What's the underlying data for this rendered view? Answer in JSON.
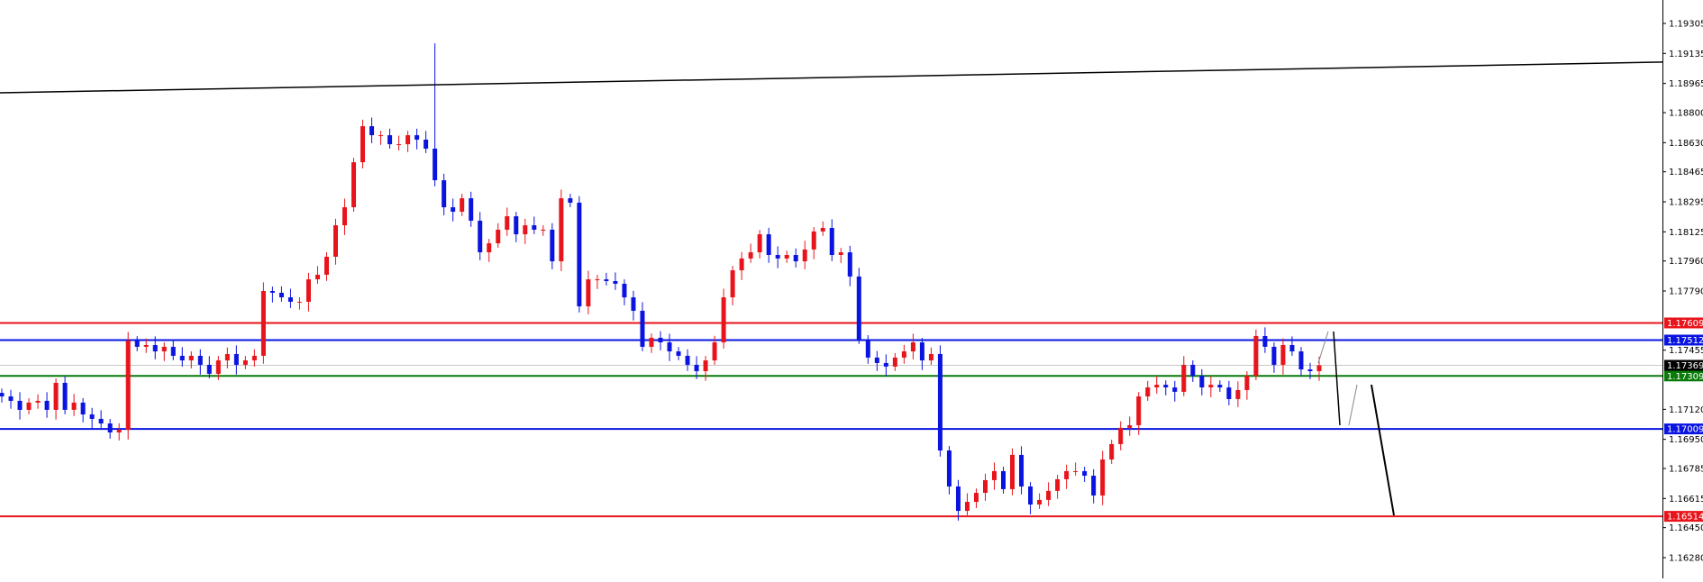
{
  "chart_data": {
    "type": "candlestick",
    "ylim": [
      1.1612,
      1.1945
    ],
    "grid": false,
    "colors": {
      "bull": "#e8141b",
      "bear": "#0a14e0",
      "axis": "#000000",
      "background": "#ffffff"
    },
    "y_ticks": [
      "1.19305",
      "1.19135",
      "1.18965",
      "1.18800",
      "1.18630",
      "1.18465",
      "1.18295",
      "1.18125",
      "1.17960",
      "1.17790",
      "1.17455",
      "1.17120",
      "1.16950",
      "1.16785",
      "1.16615",
      "1.16450",
      "1.16280"
    ],
    "closes": [
      1.17193,
      1.17168,
      1.17117,
      1.17158,
      1.17168,
      1.17117,
      1.1727,
      1.17117,
      1.17158,
      1.17091,
      1.17066,
      1.1704,
      1.16989,
      1.17004,
      1.17509,
      1.17474,
      1.17484,
      1.17448,
      1.17474,
      1.17423,
      1.17397,
      1.17423,
      1.17372,
      1.17321,
      1.17397,
      1.17433,
      1.17372,
      1.17397,
      1.17423,
      1.1779,
      1.1778,
      1.17754,
      1.17729,
      1.17729,
      1.17856,
      1.17882,
      1.17984,
      1.18162,
      1.18264,
      1.18519,
      1.18723,
      1.18672,
      1.18672,
      1.18621,
      1.18621,
      1.18672,
      1.18647,
      1.18596,
      1.18417,
      1.18264,
      1.18239,
      1.18315,
      1.18188,
      1.18009,
      1.1806,
      1.18137,
      1.18213,
      1.18111,
      1.18162,
      1.18137,
      1.18137,
      1.17958,
      1.18315,
      1.1829,
      1.17703,
      1.17856,
      1.17856,
      1.17846,
      1.17831,
      1.17754,
      1.17678,
      1.17474,
      1.17525,
      1.17499,
      1.17448,
      1.17423,
      1.17372,
      1.17336,
      1.17397,
      1.17499,
      1.17754,
      1.17907,
      1.17974,
      1.18009,
      1.18111,
      1.17994,
      1.17974,
      1.17994,
      1.17958,
      1.18025,
      1.18127,
      1.18147,
      1.17994,
      1.18009,
      1.17872,
      1.17515,
      1.17413,
      1.17382,
      1.17362,
      1.17413,
      1.17448,
      1.17499,
      1.17397,
      1.17433,
      1.16887,
      1.16683,
      1.16545,
      1.16596,
      1.16647,
      1.16719,
      1.1677,
      1.16668,
      1.16862,
      1.16683,
      1.16581,
      1.16607,
      1.16658,
      1.16724,
      1.1677,
      1.1677,
      1.16744,
      1.16632,
      1.16836,
      1.16923,
      1.17015,
      1.1703,
      1.17193,
      1.17244,
      1.17259,
      1.17244,
      1.17219,
      1.17372,
      1.1731,
      1.17244,
      1.17259,
      1.17244,
      1.17178,
      1.17229,
      1.1731,
      1.17535,
      1.17474,
      1.17372,
      1.17484,
      1.17448,
      1.17346,
      1.17336,
      1.17369
    ],
    "spike_high": {
      "index": 48,
      "price": 1.19192
    },
    "horizontal_lines": [
      {
        "label": "1.17609",
        "price": 1.17609,
        "color": "#e8141b"
      },
      {
        "label": "1.17512",
        "price": 1.17512,
        "color": "#0a14e0"
      },
      {
        "label": "1.17309",
        "price": 1.17309,
        "color": "#0a7a0a"
      },
      {
        "label": "1.17009",
        "price": 1.17009,
        "color": "#0a14e0"
      },
      {
        "label": "1.16514",
        "price": 1.16514,
        "color": "#e8141b"
      }
    ],
    "bid": {
      "label": "1.17369",
      "price": 1.17369,
      "color": "#c8c8c8"
    },
    "trendline": {
      "start_price": 1.18912,
      "end_price": 1.19086,
      "color": "#000000"
    }
  }
}
